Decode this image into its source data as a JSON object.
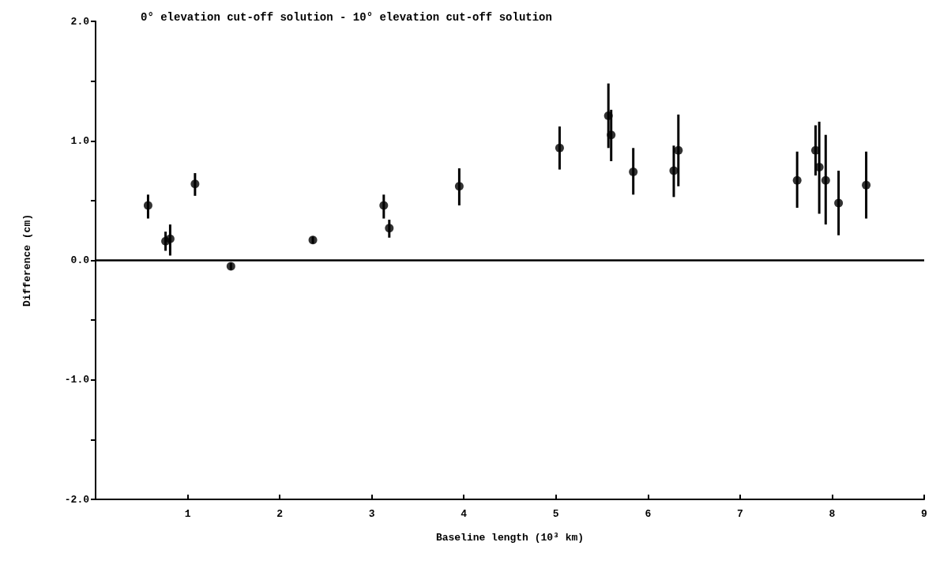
{
  "chart_data": {
    "type": "scatter",
    "title": "0° elevation cut-off solution - 10° elevation cut-off solution",
    "xlabel": "Baseline length (10³ km)",
    "ylabel": "Difference (cm)",
    "x": [
      0.57,
      0.76,
      0.81,
      1.08,
      1.47,
      2.36,
      3.13,
      3.19,
      3.95,
      5.04,
      5.57,
      5.6,
      5.84,
      6.28,
      6.33,
      7.62,
      7.82,
      7.86,
      7.93,
      8.07,
      8.37
    ],
    "series": [
      {
        "color": "#000000",
        "values": [
          0.46,
          0.16,
          0.18,
          0.64,
          -0.05,
          0.17,
          0.46,
          0.27,
          0.62,
          0.94,
          1.21,
          1.05,
          0.74,
          0.75,
          0.92,
          0.67,
          0.92,
          0.78,
          0.67,
          0.48,
          0.63
        ],
        "errors": [
          [
            0.35,
            0.55
          ],
          [
            0.08,
            0.24
          ],
          [
            0.04,
            0.3
          ],
          [
            0.54,
            0.73
          ],
          [
            -0.08,
            -0.02
          ],
          [
            0.14,
            0.2
          ],
          [
            0.35,
            0.55
          ],
          [
            0.19,
            0.34
          ],
          [
            0.46,
            0.77
          ],
          [
            0.76,
            1.12
          ],
          [
            0.94,
            1.48
          ],
          [
            0.83,
            1.26
          ],
          [
            0.55,
            0.94
          ],
          [
            0.53,
            0.96
          ],
          [
            0.62,
            1.22
          ],
          [
            0.44,
            0.91
          ],
          [
            0.71,
            1.13
          ],
          [
            0.39,
            1.16
          ],
          [
            0.3,
            1.05
          ],
          [
            0.21,
            0.75
          ],
          [
            0.35,
            0.91
          ]
        ]
      }
    ],
    "xlim": [
      0,
      9
    ],
    "xticks": [
      1,
      2,
      3,
      4,
      5,
      6,
      7,
      8,
      9
    ],
    "ylim": [
      -2,
      2
    ],
    "yticks": [
      {
        "value": -2,
        "label": "-2.0"
      },
      {
        "value": -1.5,
        "label": null
      },
      {
        "value": -1,
        "label": "-1.0"
      },
      {
        "value": -0.5,
        "label": null
      },
      {
        "value": 0,
        "label": "0.0"
      },
      {
        "value": 0.5,
        "label": null
      },
      {
        "value": 1,
        "label": "1.0"
      },
      {
        "value": 1.5,
        "label": null
      },
      {
        "value": 2,
        "label": "2.0"
      }
    ],
    "ref_lines": [
      {
        "axis": "y",
        "value": 0,
        "color": "#000000"
      }
    ],
    "marker": "circle"
  }
}
